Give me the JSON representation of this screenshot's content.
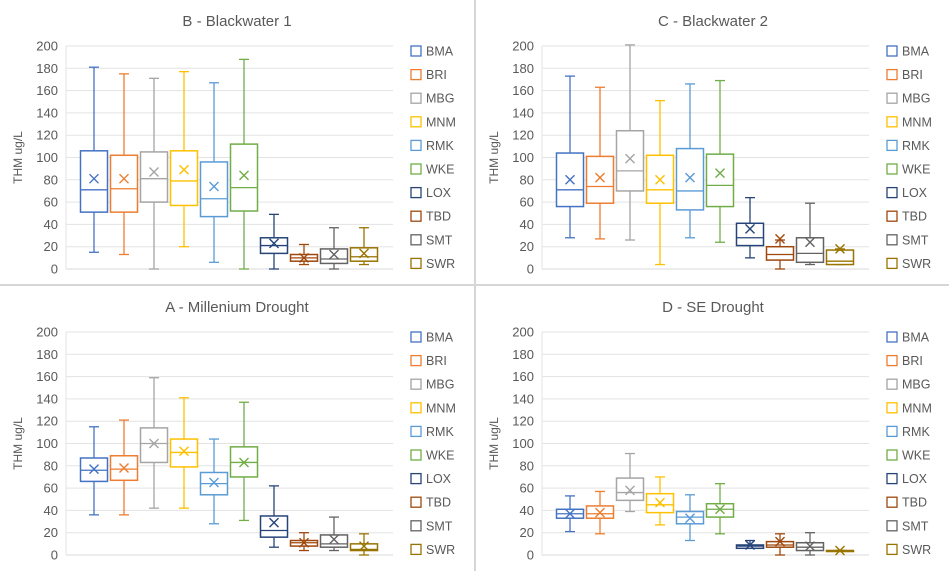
{
  "figure": {
    "layout": "2x2 grid of box-and-whisker plots"
  },
  "legend_labels": [
    "BMA",
    "BRI",
    "MBG",
    "MNM",
    "RMK",
    "WKE",
    "LOX",
    "TBD",
    "SMT",
    "SWR"
  ],
  "series_colors": {
    "BMA": "#4472c4",
    "BRI": "#ed7d31",
    "MBG": "#a5a5a5",
    "MNM": "#ffc000",
    "RMK": "#5b9bd5",
    "WKE": "#70ad47",
    "LOX": "#264478",
    "TBD": "#9e480e",
    "SMT": "#636363",
    "SWR": "#997300"
  },
  "chart_data": [
    {
      "type": "box",
      "panel": "top-left",
      "title": "B - Blackwater 1",
      "xlabel": "",
      "ylabel": "THM ug/L",
      "ylim": [
        0,
        200
      ],
      "yticks": [
        0,
        20,
        40,
        60,
        80,
        100,
        120,
        140,
        160,
        180,
        200
      ],
      "grid": true,
      "legend": "right",
      "categories": [
        "BMA",
        "BRI",
        "MBG",
        "MNM",
        "RMK",
        "WKE",
        "LOX",
        "TBD",
        "SMT",
        "SWR"
      ],
      "boxes": [
        {
          "name": "BMA",
          "min": 15,
          "q1": 51,
          "median": 71,
          "q3": 106,
          "max": 181,
          "mean": 81
        },
        {
          "name": "BRI",
          "min": 13,
          "q1": 51,
          "median": 72,
          "q3": 102,
          "max": 175,
          "mean": 81
        },
        {
          "name": "MBG",
          "min": 0,
          "q1": 60,
          "median": 81,
          "q3": 105,
          "max": 171,
          "mean": 87
        },
        {
          "name": "MNM",
          "min": 20,
          "q1": 57,
          "median": 79,
          "q3": 106,
          "max": 177,
          "mean": 89
        },
        {
          "name": "RMK",
          "min": 6,
          "q1": 47,
          "median": 63,
          "q3": 96,
          "max": 167,
          "mean": 74
        },
        {
          "name": "WKE",
          "min": 0,
          "q1": 52,
          "median": 73,
          "q3": 112,
          "max": 188,
          "mean": 84
        },
        {
          "name": "LOX",
          "min": 0,
          "q1": 14,
          "median": 21,
          "q3": 28,
          "max": 49,
          "mean": 23
        },
        {
          "name": "TBD",
          "min": 4,
          "q1": 7,
          "median": 10,
          "q3": 13,
          "max": 22,
          "mean": 10
        },
        {
          "name": "SMT",
          "min": 0,
          "q1": 5,
          "median": 9,
          "q3": 18,
          "max": 37,
          "mean": 13
        },
        {
          "name": "SWR",
          "min": 4,
          "q1": 7,
          "median": 11,
          "q3": 19,
          "max": 37,
          "mean": 14
        }
      ]
    },
    {
      "type": "box",
      "panel": "top-right",
      "title": "C - Blackwater 2",
      "xlabel": "",
      "ylabel": "THM ug/L",
      "ylim": [
        0,
        200
      ],
      "yticks": [
        0,
        20,
        40,
        60,
        80,
        100,
        120,
        140,
        160,
        180,
        200
      ],
      "grid": true,
      "legend": "right",
      "categories": [
        "BMA",
        "BRI",
        "MBG",
        "MNM",
        "RMK",
        "WKE",
        "LOX",
        "TBD",
        "SMT",
        "SWR"
      ],
      "boxes": [
        {
          "name": "BMA",
          "min": 28,
          "q1": 56,
          "median": 71,
          "q3": 104,
          "max": 173,
          "mean": 80
        },
        {
          "name": "BRI",
          "min": 27,
          "q1": 59,
          "median": 74,
          "q3": 101,
          "max": 163,
          "mean": 82
        },
        {
          "name": "MBG",
          "min": 26,
          "q1": 70,
          "median": 88,
          "q3": 124,
          "max": 201,
          "mean": 99
        },
        {
          "name": "MNM",
          "min": 4,
          "q1": 59,
          "median": 71,
          "q3": 102,
          "max": 151,
          "mean": 80
        },
        {
          "name": "RMK",
          "min": 28,
          "q1": 53,
          "median": 70,
          "q3": 108,
          "max": 166,
          "mean": 82
        },
        {
          "name": "WKE",
          "min": 24,
          "q1": 56,
          "median": 75,
          "q3": 103,
          "max": 169,
          "mean": 86
        },
        {
          "name": "LOX",
          "min": 10,
          "q1": 21,
          "median": 28,
          "q3": 41,
          "max": 64,
          "mean": 36
        },
        {
          "name": "TBD",
          "min": 0,
          "q1": 8,
          "median": 13,
          "q3": 20,
          "max": 26,
          "mean": 27
        },
        {
          "name": "SMT",
          "min": 4,
          "q1": 6,
          "median": 14,
          "q3": 28,
          "max": 59,
          "mean": 24
        },
        {
          "name": "SWR",
          "min": 4,
          "q1": 4,
          "median": 7,
          "q3": 17,
          "max": 18,
          "mean": 18
        }
      ]
    },
    {
      "type": "box",
      "panel": "bottom-left",
      "title": "A - Millenium Drought",
      "xlabel": "",
      "ylabel": "THM ug/L",
      "ylim": [
        0,
        200
      ],
      "yticks": [
        0,
        20,
        40,
        60,
        80,
        100,
        120,
        140,
        160,
        180,
        200
      ],
      "grid": true,
      "legend": "right",
      "categories": [
        "BMA",
        "BRI",
        "MBG",
        "MNM",
        "RMK",
        "WKE",
        "LOX",
        "TBD",
        "SMT",
        "SWR"
      ],
      "boxes": [
        {
          "name": "BMA",
          "min": 36,
          "q1": 66,
          "median": 76,
          "q3": 87,
          "max": 115,
          "mean": 77
        },
        {
          "name": "BRI",
          "min": 36,
          "q1": 67,
          "median": 77,
          "q3": 89,
          "max": 121,
          "mean": 78
        },
        {
          "name": "MBG",
          "min": 42,
          "q1": 83,
          "median": 100,
          "q3": 114,
          "max": 159,
          "mean": 100
        },
        {
          "name": "MNM",
          "min": 42,
          "q1": 79,
          "median": 92,
          "q3": 104,
          "max": 141,
          "mean": 93
        },
        {
          "name": "RMK",
          "min": 28,
          "q1": 54,
          "median": 64,
          "q3": 74,
          "max": 104,
          "mean": 65
        },
        {
          "name": "WKE",
          "min": 31,
          "q1": 70,
          "median": 83,
          "q3": 97,
          "max": 137,
          "mean": 83
        },
        {
          "name": "LOX",
          "min": 7,
          "q1": 16,
          "median": 22,
          "q3": 35,
          "max": 62,
          "mean": 29
        },
        {
          "name": "TBD",
          "min": 4,
          "q1": 8,
          "median": 11,
          "q3": 13,
          "max": 20,
          "mean": 11
        },
        {
          "name": "SMT",
          "min": 4,
          "q1": 7,
          "median": 10,
          "q3": 18,
          "max": 34,
          "mean": 14
        },
        {
          "name": "SWR",
          "min": 0,
          "q1": 4,
          "median": 5,
          "q3": 10,
          "max": 19,
          "mean": 8
        }
      ]
    },
    {
      "type": "box",
      "panel": "bottom-right",
      "title": "D - SE Drought",
      "xlabel": "",
      "ylabel": "THM ug/L",
      "ylim": [
        0,
        200
      ],
      "yticks": [
        0,
        20,
        40,
        60,
        80,
        100,
        120,
        140,
        160,
        180,
        200
      ],
      "grid": true,
      "legend": "right",
      "categories": [
        "BMA",
        "BRI",
        "MBG",
        "MNM",
        "RMK",
        "WKE",
        "LOX",
        "TBD",
        "SMT",
        "SWR"
      ],
      "boxes": [
        {
          "name": "BMA",
          "min": 21,
          "q1": 33,
          "median": 37,
          "q3": 41,
          "max": 53,
          "mean": 37
        },
        {
          "name": "BRI",
          "min": 19,
          "q1": 33,
          "median": 37,
          "q3": 44,
          "max": 57,
          "mean": 38
        },
        {
          "name": "MBG",
          "min": 39,
          "q1": 49,
          "median": 56,
          "q3": 69,
          "max": 91,
          "mean": 58
        },
        {
          "name": "MNM",
          "min": 27,
          "q1": 38,
          "median": 45,
          "q3": 55,
          "max": 70,
          "mean": 47
        },
        {
          "name": "RMK",
          "min": 13,
          "q1": 28,
          "median": 34,
          "q3": 39,
          "max": 54,
          "mean": 33
        },
        {
          "name": "WKE",
          "min": 19,
          "q1": 34,
          "median": 41,
          "q3": 46,
          "max": 64,
          "mean": 41
        },
        {
          "name": "LOX",
          "min": 6,
          "q1": 6,
          "median": 8,
          "q3": 9,
          "max": 13,
          "mean": 9
        },
        {
          "name": "TBD",
          "min": 0,
          "q1": 7,
          "median": 9,
          "q3": 12,
          "max": 19,
          "mean": 12
        },
        {
          "name": "SMT",
          "min": 0,
          "q1": 4,
          "median": 7,
          "q3": 11,
          "max": 20,
          "mean": 8
        },
        {
          "name": "SWR",
          "min": 4,
          "q1": 4,
          "median": 4,
          "q3": 4,
          "max": 4,
          "mean": 4
        }
      ]
    }
  ]
}
